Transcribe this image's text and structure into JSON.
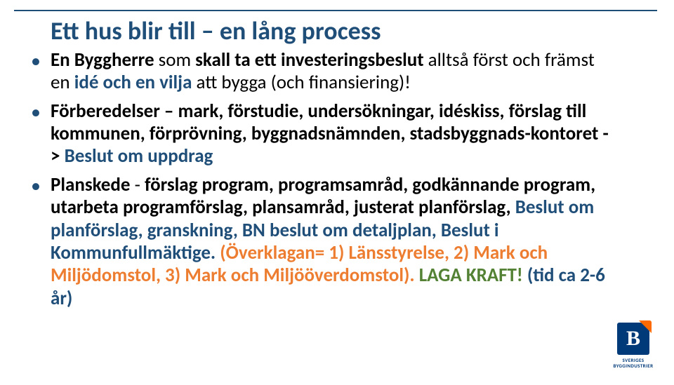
{
  "colors": {
    "accent_blue": "#1f4e79",
    "body_black": "#000000",
    "accent_orange": "#ed7d31",
    "accent_green": "#548235",
    "logo_blue": "#003a78",
    "logo_orange": "#ff6a00",
    "background": "#ffffff"
  },
  "typography": {
    "title_fontsize_pt": 27,
    "body_fontsize_pt": 20,
    "font_family": "Calibri"
  },
  "title": "Ett hus blir till – en lång process",
  "bullets": [
    {
      "runs": [
        {
          "t": "En Byggherre",
          "b": true,
          "c": "black"
        },
        {
          "t": " som ",
          "b": false,
          "c": "black"
        },
        {
          "t": "skall ta ett investeringsbeslut ",
          "b": true,
          "c": "black"
        },
        {
          "t": "alltså först och främst en ",
          "b": false,
          "c": "black"
        },
        {
          "t": "idé och en vilja ",
          "b": true,
          "c": "blue"
        },
        {
          "t": "att bygga (och finansiering)!",
          "b": false,
          "c": "black"
        }
      ]
    },
    {
      "runs": [
        {
          "t": "Förberedelser – ",
          "b": true,
          "c": "black"
        },
        {
          "t": "mark, förstudie, undersökningar, idéskiss, förslag till kommunen, förprövning, byggnadsnämnden, stadsbyggnads-kontoret -> ",
          "b": true,
          "c": "black"
        },
        {
          "t": "Beslut om uppdrag",
          "b": true,
          "c": "blue"
        }
      ]
    },
    {
      "runs": [
        {
          "t": "Planskede",
          "b": true,
          "c": "black"
        },
        {
          "t": " -  ",
          "b": false,
          "c": "black"
        },
        {
          "t": "förslag program, programsamråd, godkännande program,  utarbeta programförslag, plansamråd, justerat planförslag, ",
          "b": true,
          "c": "black"
        },
        {
          "t": "Beslut om planförslag, granskning, BN beslut om detaljplan, Beslut i Kommunfullmäktige.",
          "b": true,
          "c": "blue"
        },
        {
          "t": " (Överklagan= 1) Länsstyrelse, 2) Mark och Miljödomstol, 3) Mark och Miljööverdomstol). ",
          "b": true,
          "c": "orange"
        },
        {
          "t": "LAGA KRAFT!",
          "b": true,
          "c": "green"
        },
        {
          "t": " (tid ca 2-6 år)",
          "b": true,
          "c": "blue"
        }
      ]
    }
  ],
  "logo": {
    "letter": "B",
    "line1": "SVERIGES",
    "line2": "BYGGINDUSTRIER"
  }
}
